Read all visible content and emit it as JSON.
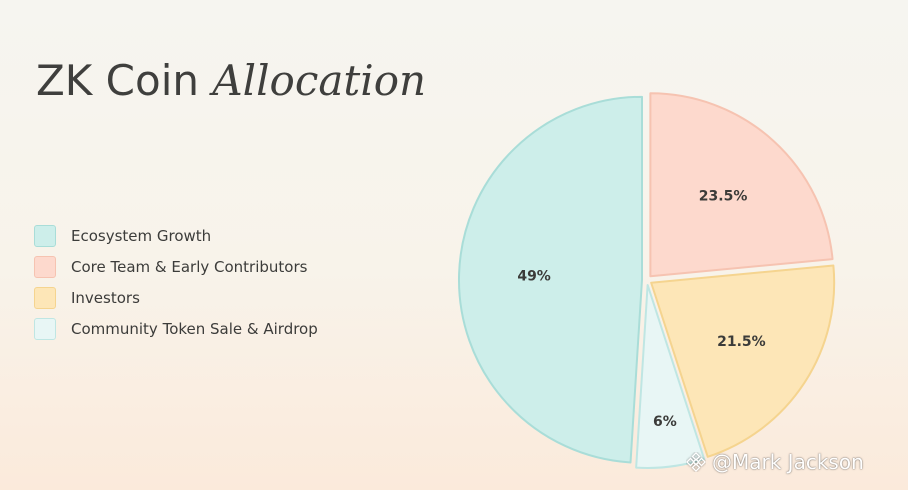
{
  "title": {
    "main": "ZK Coin",
    "accent": "Allocation"
  },
  "chart_data": {
    "type": "pie",
    "slices": [
      {
        "label": "Core Team & Early Contributors",
        "value": 23.5,
        "display": "23.5%",
        "color": "#fdd9cd",
        "stroke": "#f6c3b1"
      },
      {
        "label": "Investors",
        "value": 21.5,
        "display": "21.5%",
        "color": "#fde6b7",
        "stroke": "#f5d48f"
      },
      {
        "label": "Community Token Sale & Airdrop",
        "value": 6,
        "display": "6%",
        "color": "#e8f6f5",
        "stroke": "#bfe6e3"
      },
      {
        "label": "Ecosystem Growth",
        "value": 49,
        "display": "49%",
        "color": "#cdeeea",
        "stroke": "#a9ddd8"
      }
    ],
    "start_angle_deg": 0,
    "direction": "clockwise",
    "exploded": true
  },
  "legend": {
    "items": [
      {
        "label": "Ecosystem Growth",
        "color": "#cdeeea",
        "stroke": "#a9ddd8"
      },
      {
        "label": "Core Team & Early Contributors",
        "color": "#fdd9cd",
        "stroke": "#f6c3b1"
      },
      {
        "label": "Investors",
        "color": "#fde6b7",
        "stroke": "#f5d48f"
      },
      {
        "label": "Community Token Sale & Airdrop",
        "color": "#e8f6f5",
        "stroke": "#bfe6e3"
      }
    ]
  },
  "watermark": {
    "text": "@Mark Jackson",
    "logo_icon": "binance-diamond-icon"
  }
}
